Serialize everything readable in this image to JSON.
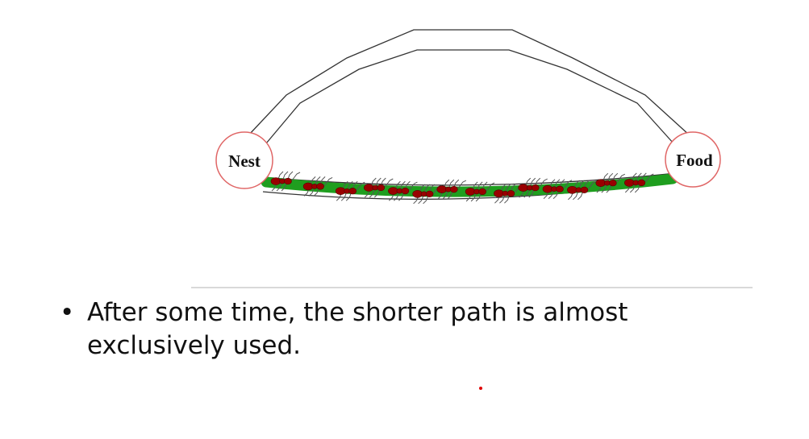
{
  "diagram": {
    "nest_label": "Nest",
    "food_label": "Food",
    "colors": {
      "path_stroke": "#333333",
      "node_border": "#e06666",
      "pheromone": "#1f9e1f",
      "ant_body": "#990000",
      "ant_legs": "#555555",
      "cursor_dot": "#e00000"
    }
  },
  "content": {
    "bullet_symbol": "•",
    "bullet_text": "After some time, the shorter path is almost exclusively used."
  }
}
